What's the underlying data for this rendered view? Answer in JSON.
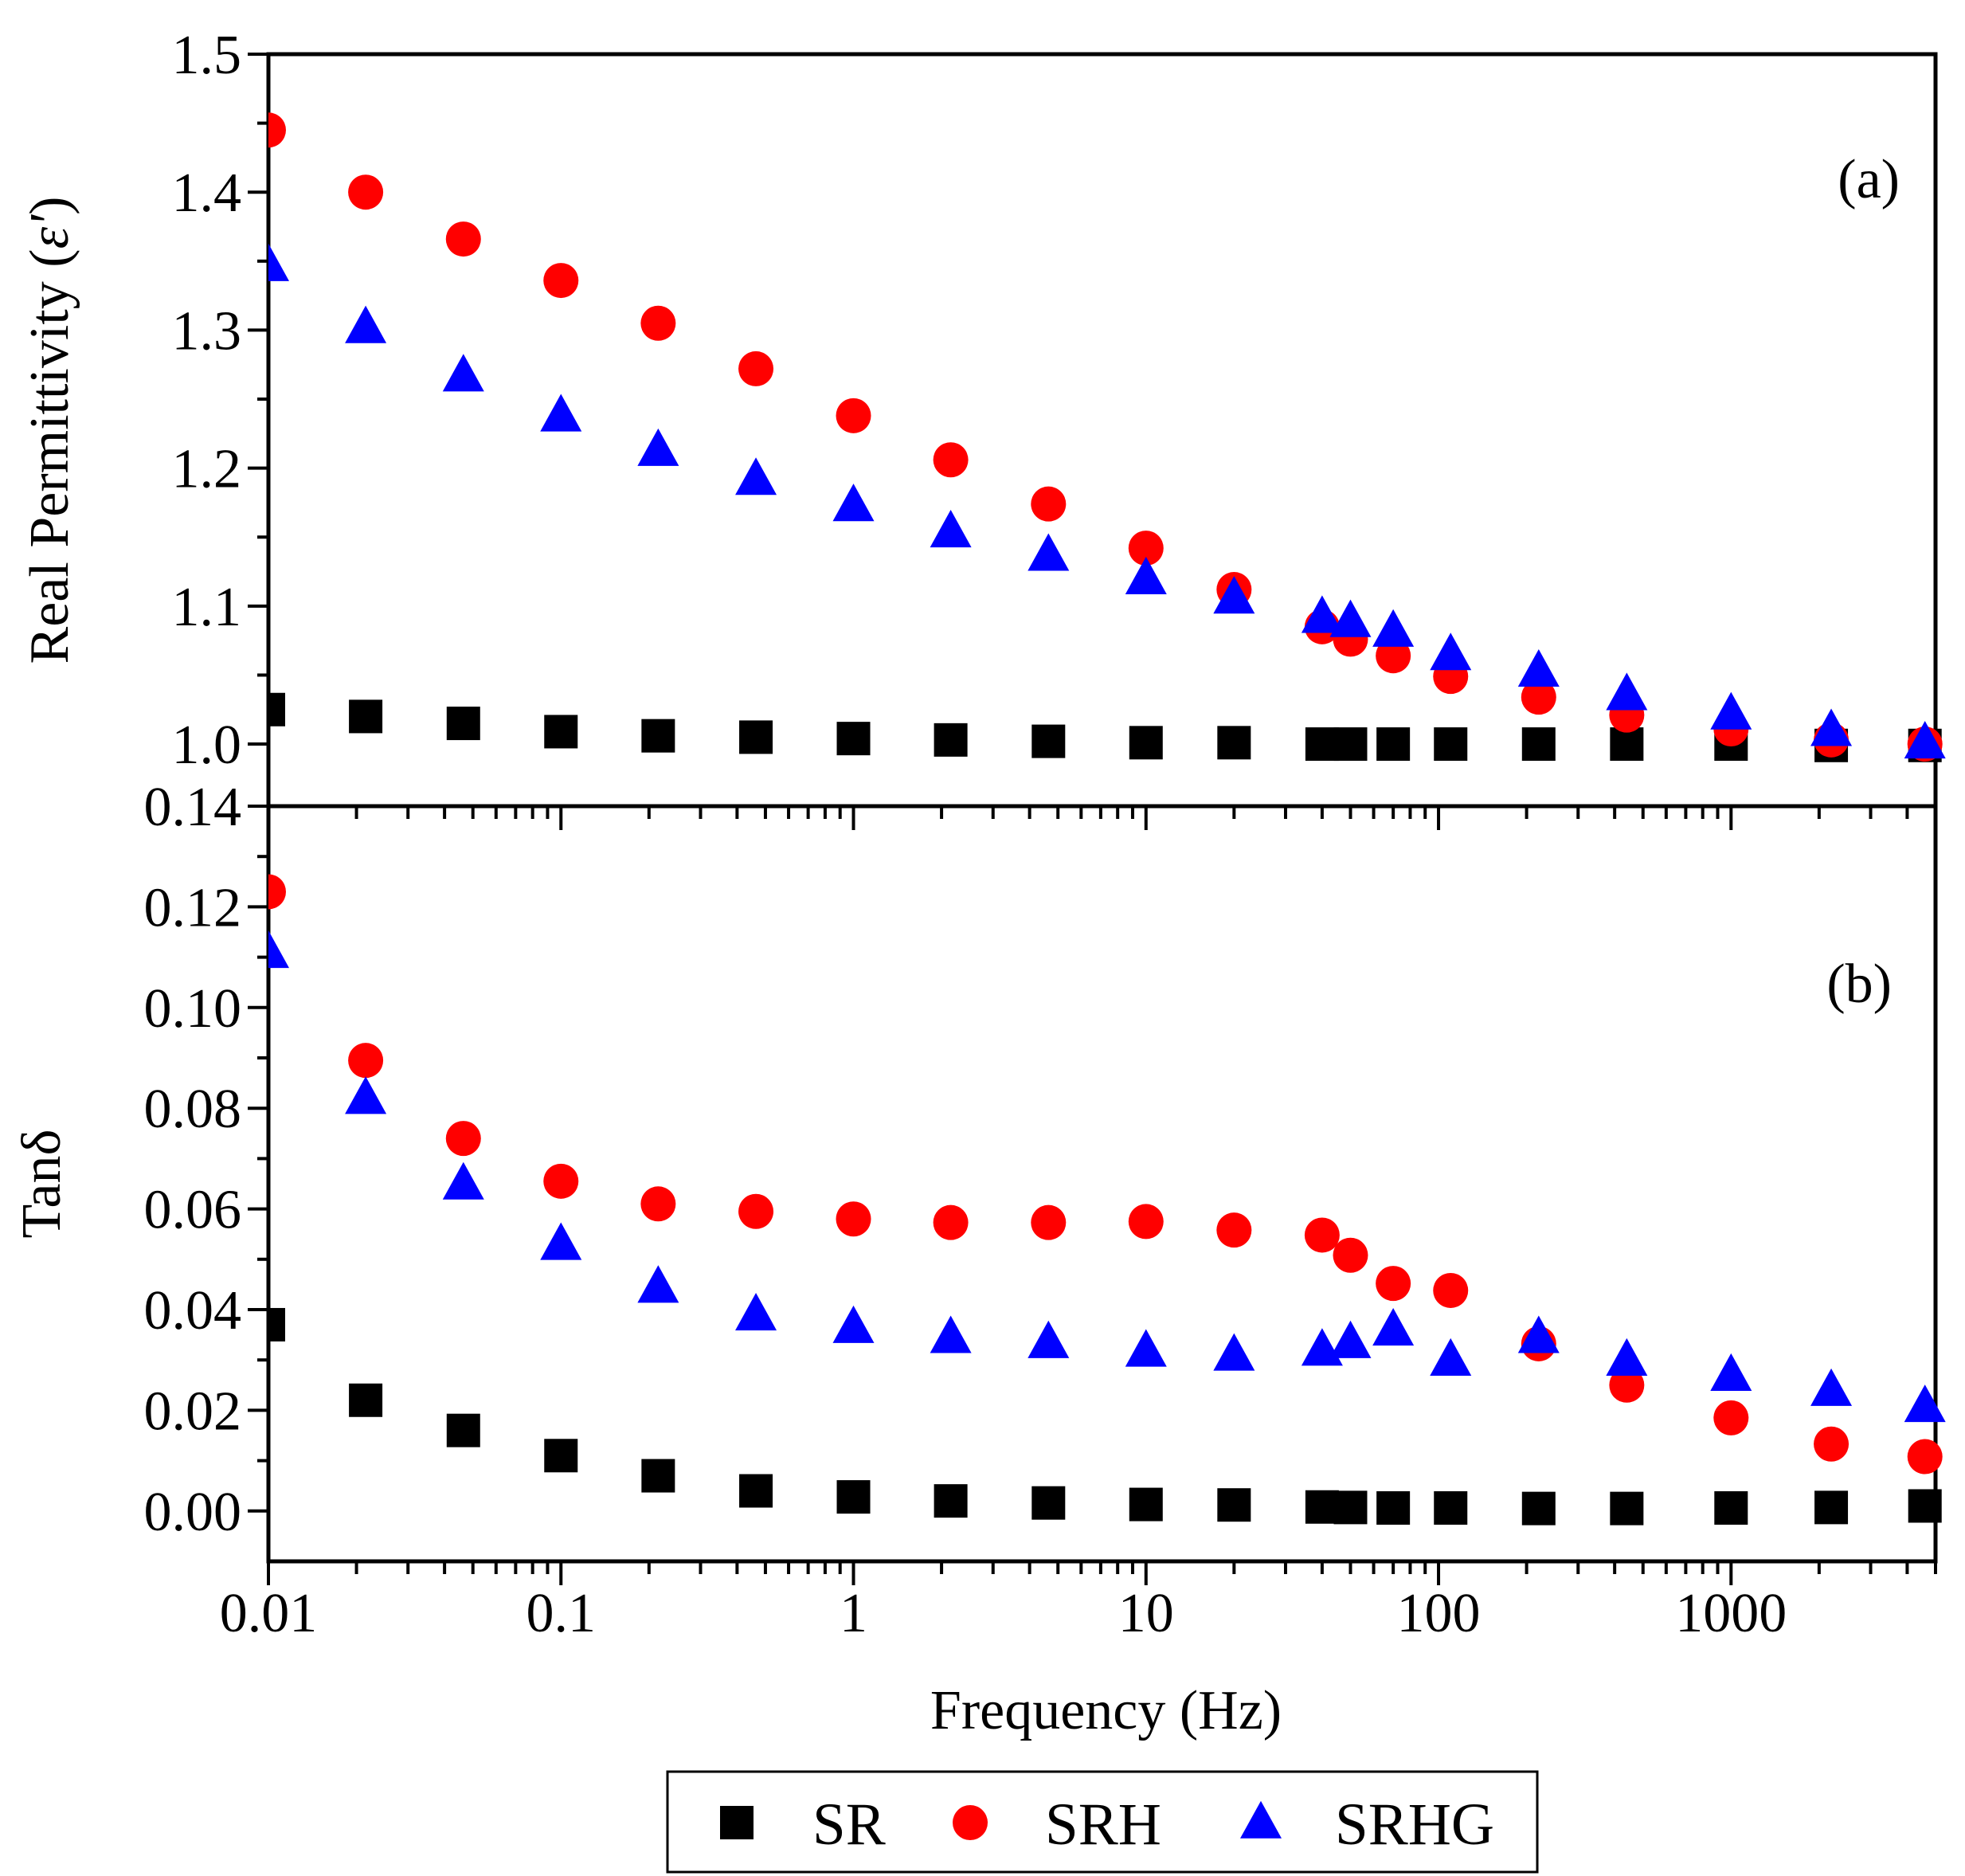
{
  "chart_data": {
    "type": "scatter",
    "xlabel": "Frequency (Hz)",
    "xscale": "log",
    "xlim": [
      0.01,
      5000
    ],
    "x_ticks": [
      {
        "value": 0.01,
        "label": "0.01"
      },
      {
        "value": 0.1,
        "label": "0.1"
      },
      {
        "value": 1,
        "label": "1"
      },
      {
        "value": 10,
        "label": "10"
      },
      {
        "value": 100,
        "label": "100"
      },
      {
        "value": 1000,
        "label": "1000"
      }
    ],
    "x": [
      0.01,
      0.0215,
      0.0464,
      0.1,
      0.215,
      0.464,
      1,
      2.15,
      4.64,
      10,
      20,
      40,
      50,
      70,
      110,
      220,
      440,
      1000,
      2200,
      4600
    ],
    "legend": {
      "placement": "bottom-center",
      "entries": [
        {
          "name": "SR",
          "marker": "square",
          "color": "#000000"
        },
        {
          "name": "SRH",
          "marker": "circle",
          "color": "#ff0000"
        },
        {
          "name": "SRHG",
          "marker": "triangle",
          "color": "#0000ff"
        }
      ]
    },
    "panels": [
      {
        "label": "(a)",
        "ylabel": {
          "text": "Real Permittivity (",
          "symbol": "ε'",
          "close": ")"
        },
        "ylim": [
          0.955,
          1.5
        ],
        "y_ticks": [
          {
            "value": 1.0,
            "label": "1.0"
          },
          {
            "value": 1.1,
            "label": "1.1"
          },
          {
            "value": 1.2,
            "label": "1.2"
          },
          {
            "value": 1.3,
            "label": "1.3"
          },
          {
            "value": 1.4,
            "label": "1.4"
          },
          {
            "value": 1.5,
            "label": "1.5"
          }
        ],
        "series": [
          {
            "name": "SR",
            "values": [
              1.025,
              1.02,
              1.015,
              1.009,
              1.006,
              1.005,
              1.004,
              1.003,
              1.002,
              1.001,
              1.001,
              1.0,
              1.0,
              1.0,
              1.0,
              1.0,
              1.0,
              1.0,
              0.999,
              0.999
            ]
          },
          {
            "name": "SRH",
            "values": [
              1.445,
              1.4,
              1.366,
              1.336,
              1.305,
              1.272,
              1.238,
              1.206,
              1.174,
              1.142,
              1.112,
              1.085,
              1.076,
              1.064,
              1.049,
              1.034,
              1.021,
              1.011,
              1.003,
              1.0
            ]
          },
          {
            "name": "SRHG",
            "values": [
              1.347,
              1.302,
              1.267,
              1.238,
              1.213,
              1.192,
              1.173,
              1.154,
              1.137,
              1.12,
              1.106,
              1.092,
              1.089,
              1.082,
              1.065,
              1.053,
              1.036,
              1.022,
              1.01,
              1.001
            ]
          }
        ]
      },
      {
        "label": "(b)",
        "ylabel": {
          "text": "Tanδ"
        },
        "ylim": [
          -0.01,
          0.14
        ],
        "y_ticks": [
          {
            "value": 0.0,
            "label": "0.00"
          },
          {
            "value": 0.02,
            "label": "0.02"
          },
          {
            "value": 0.04,
            "label": "0.04"
          },
          {
            "value": 0.06,
            "label": "0.06"
          },
          {
            "value": 0.08,
            "label": "0.08"
          },
          {
            "value": 0.1,
            "label": "0.10"
          },
          {
            "value": 0.12,
            "label": "0.12"
          },
          {
            "value": 0.14,
            "label": "0.14"
          }
        ],
        "series": [
          {
            "name": "SR",
            "values": [
              0.037,
              0.022,
              0.016,
              0.011,
              0.007,
              0.004,
              0.0028,
              0.002,
              0.0016,
              0.0013,
              0.0012,
              0.0008,
              0.0007,
              0.0006,
              0.0006,
              0.0005,
              0.0005,
              0.0006,
              0.0007,
              0.001
            ]
          },
          {
            "name": "SRH",
            "values": [
              0.123,
              0.0895,
              0.074,
              0.0655,
              0.061,
              0.0595,
              0.058,
              0.0573,
              0.0573,
              0.0575,
              0.0558,
              0.0548,
              0.0508,
              0.0452,
              0.0438,
              0.0332,
              0.025,
              0.0185,
              0.0133,
              0.0108
            ]
          },
          {
            "name": "SRHG",
            "values": [
              0.111,
              0.082,
              0.065,
              0.053,
              0.0445,
              0.039,
              0.0365,
              0.0345,
              0.0335,
              0.0318,
              0.031,
              0.032,
              0.0335,
              0.036,
              0.03,
              0.0345,
              0.03,
              0.027,
              0.024,
              0.0208
            ]
          }
        ]
      }
    ]
  }
}
